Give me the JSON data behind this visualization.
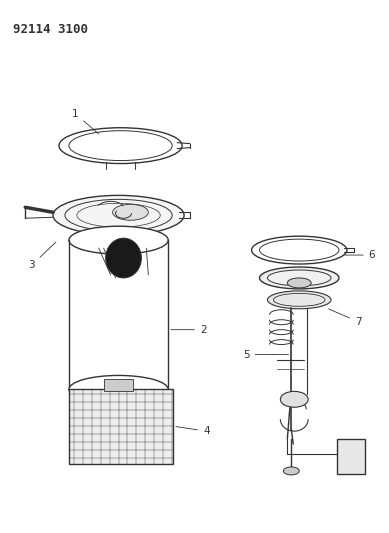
{
  "title": "92114 3100",
  "bg_color": "#ffffff",
  "fig_width": 3.89,
  "fig_height": 5.33,
  "dpi": 100,
  "line_color": "#333333",
  "line_width": 0.8
}
